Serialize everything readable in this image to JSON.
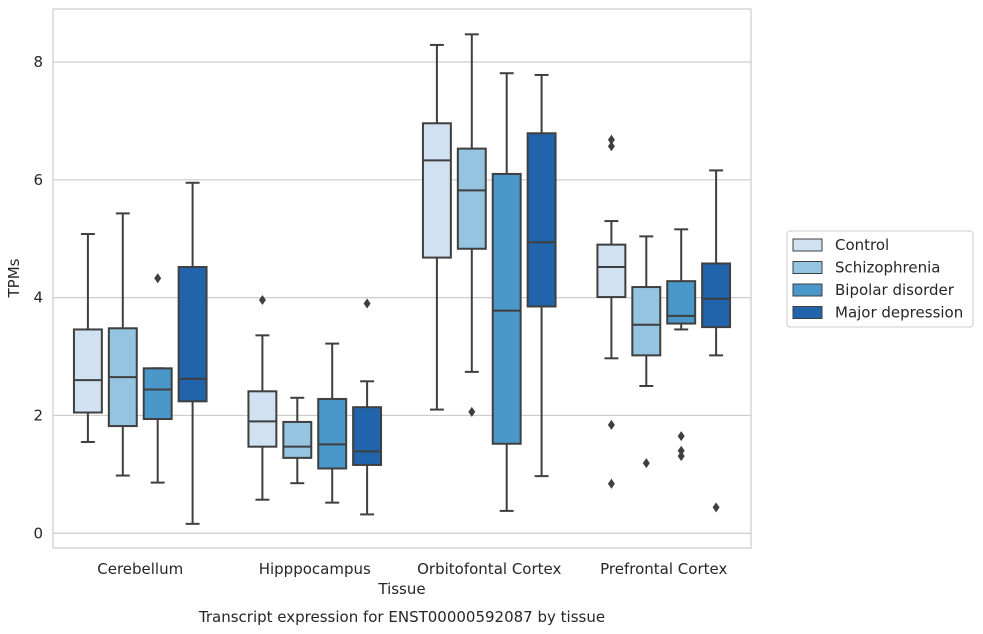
{
  "chart_data": {
    "type": "box",
    "xlabel": "Tissue",
    "ylabel": "TPMs",
    "caption": "Transcript expression for ENST00000592087 by tissue",
    "categories": [
      "Cerebellum",
      "Hipppocampus",
      "Orbitofontal Cortex",
      "Prefrontal Cortex"
    ],
    "ylim": [
      -0.25,
      8.9
    ],
    "yticks": [
      0,
      2,
      4,
      6,
      8
    ],
    "grid": "horizontal",
    "legend_position": "right",
    "series": [
      {
        "name": "Control",
        "color": "#d0e1f2",
        "boxes": [
          {
            "whislo": 1.55,
            "q1": 2.05,
            "med": 2.6,
            "q3": 3.46,
            "whishi": 5.08,
            "fliers": []
          },
          {
            "whislo": 0.57,
            "q1": 1.47,
            "med": 1.9,
            "q3": 2.41,
            "whishi": 3.36,
            "fliers": [
              3.96
            ]
          },
          {
            "whislo": 2.1,
            "q1": 4.68,
            "med": 6.33,
            "q3": 6.96,
            "whishi": 8.29,
            "fliers": []
          },
          {
            "whislo": 2.97,
            "q1": 4.01,
            "med": 4.52,
            "q3": 4.9,
            "whishi": 5.3,
            "fliers": [
              6.68,
              6.57,
              1.84,
              0.84
            ]
          }
        ]
      },
      {
        "name": "Schizophrenia",
        "color": "#94c4df",
        "boxes": [
          {
            "whislo": 0.98,
            "q1": 1.82,
            "med": 2.65,
            "q3": 3.48,
            "whishi": 5.43,
            "fliers": []
          },
          {
            "whislo": 0.85,
            "q1": 1.28,
            "med": 1.47,
            "q3": 1.89,
            "whishi": 2.3,
            "fliers": []
          },
          {
            "whislo": 2.74,
            "q1": 4.83,
            "med": 5.82,
            "q3": 6.53,
            "whishi": 8.47,
            "fliers": [
              2.06
            ]
          },
          {
            "whislo": 2.5,
            "q1": 3.02,
            "med": 3.54,
            "q3": 4.18,
            "whishi": 5.04,
            "fliers": [
              1.19
            ]
          }
        ]
      },
      {
        "name": "Bipolar disorder",
        "color": "#4a98c9",
        "boxes": [
          {
            "whislo": 0.86,
            "q1": 1.94,
            "med": 2.44,
            "q3": 2.8,
            "whishi": 2.8,
            "fliers": [
              4.33
            ]
          },
          {
            "whislo": 0.52,
            "q1": 1.1,
            "med": 1.51,
            "q3": 2.28,
            "whishi": 3.22,
            "fliers": []
          },
          {
            "whislo": 0.38,
            "q1": 1.52,
            "med": 3.78,
            "q3": 6.1,
            "whishi": 7.81,
            "fliers": []
          },
          {
            "whislo": 3.46,
            "q1": 3.56,
            "med": 3.69,
            "q3": 4.28,
            "whishi": 5.16,
            "fliers": [
              1.65,
              1.4,
              1.31
            ]
          }
        ]
      },
      {
        "name": "Major depression",
        "color": "#2164ab",
        "boxes": [
          {
            "whislo": 0.16,
            "q1": 2.24,
            "med": 2.62,
            "q3": 4.52,
            "whishi": 5.95,
            "fliers": []
          },
          {
            "whislo": 0.32,
            "q1": 1.16,
            "med": 1.39,
            "q3": 2.14,
            "whishi": 2.58,
            "fliers": [
              3.9
            ]
          },
          {
            "whislo": 0.97,
            "q1": 3.85,
            "med": 4.94,
            "q3": 6.79,
            "whishi": 7.78,
            "fliers": []
          },
          {
            "whislo": 3.02,
            "q1": 3.5,
            "med": 3.98,
            "q3": 4.58,
            "whishi": 6.16,
            "fliers": [
              0.44
            ]
          }
        ]
      }
    ]
  }
}
